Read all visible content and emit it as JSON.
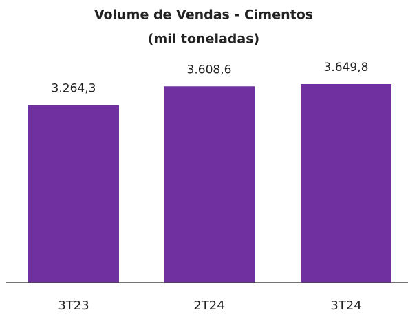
{
  "chart_data": {
    "type": "bar",
    "title": "Volume de Vendas - Cimentos",
    "subtitle": "(mil toneladas)",
    "categories": [
      "3T23",
      "2T24",
      "3T24"
    ],
    "values": [
      3264.3,
      3608.6,
      3649.8
    ],
    "value_labels": [
      "3.264,3",
      "3.608,6",
      "3.649,8"
    ],
    "color": "#7030a0"
  }
}
